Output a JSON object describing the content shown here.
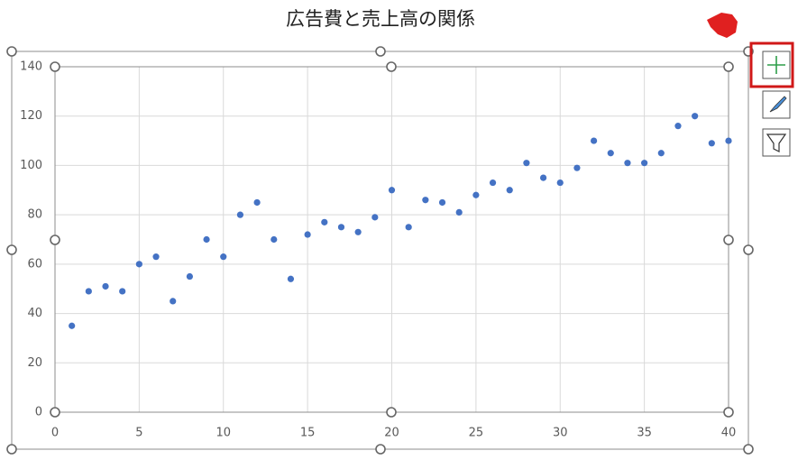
{
  "chart_data": {
    "type": "scatter",
    "title": "広告費と売上高の関係",
    "x": [
      1,
      2,
      3,
      4,
      5,
      6,
      7,
      8,
      9,
      10,
      11,
      12,
      13,
      14,
      15,
      16,
      17,
      18,
      19,
      20,
      21,
      22,
      23,
      24,
      25,
      26,
      27,
      28,
      29,
      30,
      31,
      32,
      33,
      34,
      35,
      36,
      37,
      38,
      39,
      40
    ],
    "series": [
      {
        "color": "#4472c4",
        "values": [
          35,
          49,
          51,
          49,
          60,
          63,
          45,
          55,
          70,
          63,
          80,
          85,
          70,
          54,
          72,
          77,
          75,
          73,
          79,
          90,
          75,
          86,
          85,
          81,
          88,
          93,
          90,
          101,
          95,
          93,
          99,
          110,
          105,
          101,
          101,
          105,
          116,
          120,
          109,
          110
        ]
      }
    ],
    "xlim": [
      0,
      40
    ],
    "xticks": [
      0,
      5,
      10,
      15,
      20,
      25,
      30,
      35,
      40
    ],
    "ylim": [
      0,
      140
    ],
    "yticks": [
      0,
      20,
      40,
      60,
      80,
      100,
      120,
      140
    ],
    "grid": true
  }
}
